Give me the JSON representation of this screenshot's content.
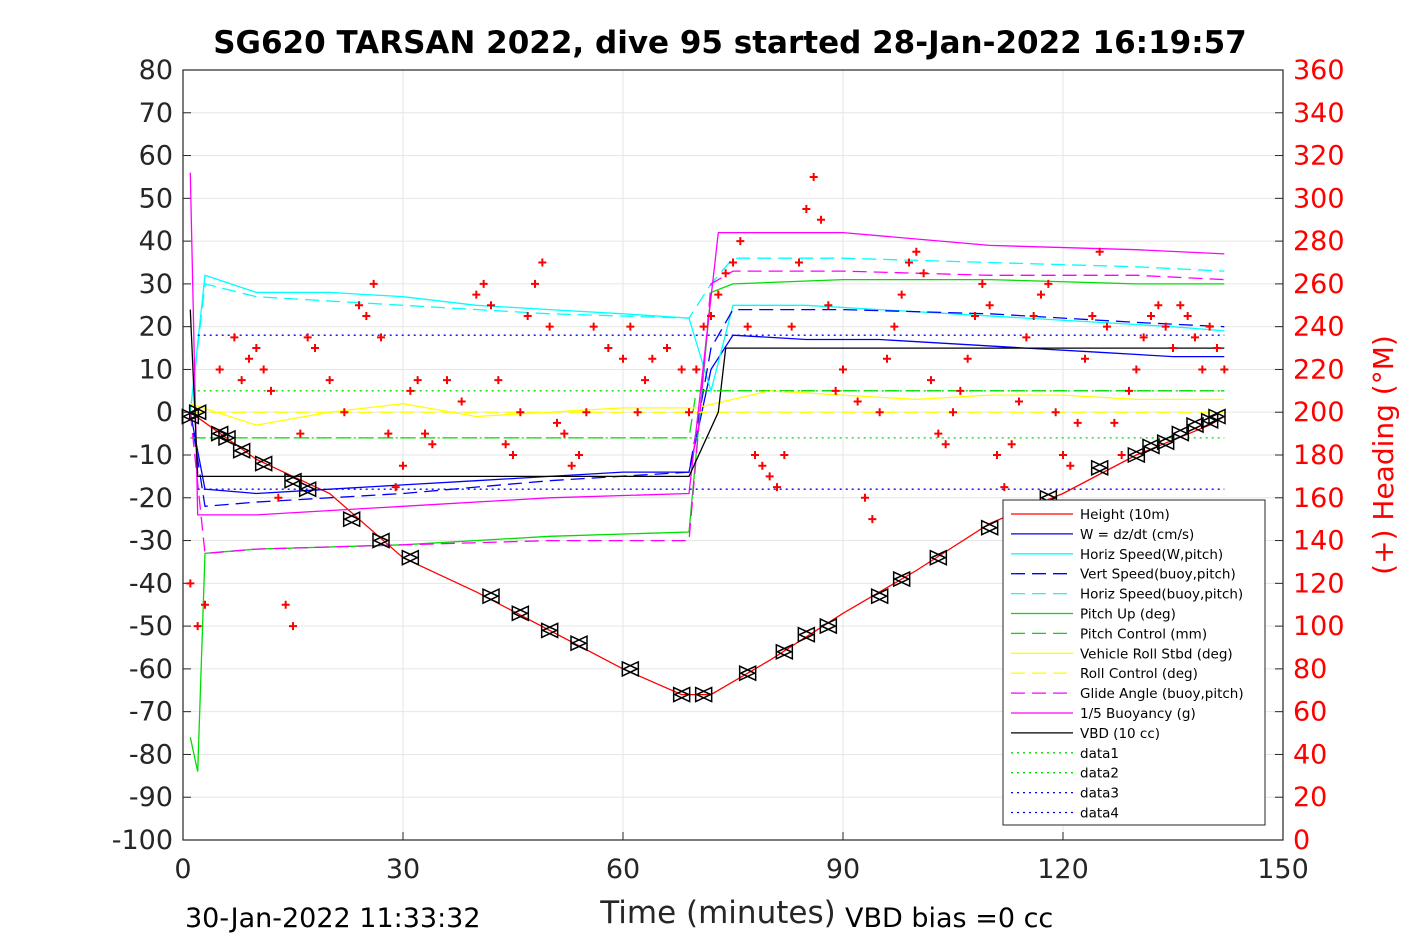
{
  "colors": {
    "red": "#ff0000",
    "blue": "#0000ff",
    "cyan": "#00ffff",
    "green": "#00dd00",
    "yellow": "#ffff00",
    "magenta": "#ff00ff",
    "black": "#000000",
    "grid": "#e6e6e6"
  },
  "chart_data": {
    "type": "line",
    "title": "SG620 TARSAN 2022, dive 95 started 28-Jan-2022 16:19:57",
    "xlabel": "Time (minutes)",
    "ylabel_left": "",
    "ylabel_right": "(+) Heading (°M)",
    "xlim": [
      0,
      150
    ],
    "ylim": [
      -100,
      80
    ],
    "ylim_right": [
      0,
      360
    ],
    "x_ticks": [
      "0",
      "30",
      "60",
      "90",
      "120",
      "150"
    ],
    "y_ticks_left": [
      "80",
      "70",
      "60",
      "50",
      "40",
      "30",
      "20",
      "10",
      "0",
      "-10",
      "-20",
      "-30",
      "-40",
      "-50",
      "-60",
      "-70",
      "-80",
      "-90",
      "-100"
    ],
    "y_ticks_right": [
      "360",
      "340",
      "320",
      "300",
      "280",
      "260",
      "240",
      "220",
      "200",
      "180",
      "160",
      "140",
      "120",
      "100",
      "80",
      "60",
      "40",
      "20",
      "0"
    ],
    "grid": true,
    "legend_position": "lower-right",
    "footer_left": "30-Jan-2022 11:33:32",
    "footer_right": "VBD bias =0 cc",
    "series": [
      {
        "name": "Height (10m)",
        "color": "red",
        "style": "solid",
        "x": [
          1,
          10,
          20,
          30,
          40,
          50,
          60,
          68,
          72,
          80,
          90,
          100,
          110,
          120,
          130,
          140,
          142
        ],
        "y": [
          0,
          -11,
          -19,
          -34,
          -42,
          -51,
          -60,
          -66,
          -66,
          -58,
          -47,
          -37,
          -26,
          -19,
          -10,
          -3,
          -1
        ]
      },
      {
        "name": "W = dz/dt (cm/s)",
        "color": "blue",
        "style": "solid",
        "x": [
          1,
          3,
          10,
          20,
          30,
          40,
          50,
          60,
          69,
          72,
          75,
          85,
          95,
          105,
          115,
          125,
          135,
          142
        ],
        "y": [
          0,
          -18,
          -19,
          -18,
          -17,
          -16,
          -15,
          -14,
          -14,
          10,
          18,
          17,
          17,
          16,
          15,
          14,
          13,
          13
        ]
      },
      {
        "name": "Horiz Speed(W,pitch)",
        "color": "cyan",
        "style": "solid",
        "x": [
          1,
          3,
          10,
          20,
          30,
          40,
          50,
          60,
          69,
          72,
          75,
          85,
          95,
          105,
          115,
          125,
          135,
          142
        ],
        "y": [
          0,
          32,
          28,
          28,
          27,
          25,
          24,
          23,
          22,
          5,
          25,
          25,
          24,
          23,
          22,
          21,
          20,
          19
        ]
      },
      {
        "name": "Vert Speed(buoy,pitch)",
        "color": "blue",
        "style": "dashed",
        "x": [
          1,
          3,
          10,
          30,
          50,
          69,
          72,
          75,
          90,
          110,
          130,
          142
        ],
        "y": [
          0,
          -22,
          -21,
          -19,
          -16,
          -14,
          15,
          24,
          24,
          23,
          21,
          20
        ]
      },
      {
        "name": "Horiz Speed(buoy,pitch)",
        "color": "cyan",
        "style": "dashed",
        "x": [
          1,
          3,
          10,
          30,
          50,
          69,
          72,
          75,
          90,
          110,
          130,
          142
        ],
        "y": [
          0,
          30,
          27,
          25,
          23,
          22,
          30,
          36,
          36,
          35,
          34,
          33
        ]
      },
      {
        "name": "Pitch Up (deg)",
        "color": "green",
        "style": "solid",
        "x": [
          1,
          2,
          3,
          10,
          30,
          50,
          69,
          72,
          75,
          90,
          110,
          130,
          142
        ],
        "y": [
          -76,
          -84,
          -33,
          -32,
          -31,
          -29,
          -28,
          28,
          30,
          31,
          31,
          30,
          30
        ]
      },
      {
        "name": "Pitch Control (mm)",
        "color": "green",
        "style": "dashed",
        "x": [
          1,
          69,
          70,
          142
        ],
        "y": [
          -6,
          -6,
          5,
          5
        ]
      },
      {
        "name": "Vehicle Roll Stbd (deg)",
        "color": "yellow",
        "style": "solid",
        "x": [
          1,
          10,
          20,
          30,
          40,
          50,
          60,
          70,
          80,
          90,
          100,
          110,
          120,
          130,
          142
        ],
        "y": [
          2,
          -3,
          0,
          2,
          -1,
          0,
          1,
          1,
          5,
          4,
          3,
          4,
          4,
          3,
          3
        ]
      },
      {
        "name": "Roll Control (deg)",
        "color": "yellow",
        "style": "dashed",
        "x": [
          1,
          142
        ],
        "y": [
          0,
          0
        ]
      },
      {
        "name": "Glide Angle (buoy,pitch)",
        "color": "magenta",
        "style": "dashed",
        "x": [
          1,
          3,
          10,
          30,
          50,
          69,
          72,
          75,
          90,
          110,
          130,
          142
        ],
        "y": [
          0,
          -33,
          -32,
          -31,
          -30,
          -30,
          30,
          33,
          33,
          32,
          32,
          31
        ]
      },
      {
        "name": "1/5 Buoyancy (g)",
        "color": "magenta",
        "style": "solid",
        "x": [
          1,
          2,
          3,
          10,
          30,
          50,
          69,
          73,
          90,
          110,
          130,
          142
        ],
        "y": [
          56,
          -24,
          -24,
          -24,
          -22,
          -20,
          -19,
          42,
          42,
          39,
          38,
          37
        ]
      },
      {
        "name": "VBD (10 cc)",
        "color": "black",
        "style": "solid",
        "x": [
          1,
          2,
          3,
          69,
          73,
          74,
          142
        ],
        "y": [
          24,
          -15,
          -15,
          -15,
          0,
          15,
          15
        ]
      },
      {
        "name": "data1",
        "color": "green",
        "style": "dotted",
        "x": [
          2,
          142
        ],
        "y": [
          -6,
          -6
        ]
      },
      {
        "name": "data2",
        "color": "green",
        "style": "dotted",
        "x": [
          2,
          142
        ],
        "y": [
          5,
          5
        ]
      },
      {
        "name": "data3",
        "color": "blue",
        "style": "dotted",
        "x": [
          2,
          142
        ],
        "y": [
          18,
          18
        ]
      },
      {
        "name": "data4",
        "color": "blue",
        "style": "dotted",
        "x": [
          2,
          142
        ],
        "y": [
          -18,
          -18
        ]
      }
    ],
    "heading": {
      "color": "red",
      "marker": "+",
      "x": [
        1,
        2,
        3,
        5,
        7,
        8,
        9,
        10,
        11,
        12,
        13,
        14,
        15,
        16,
        17,
        18,
        20,
        22,
        24,
        25,
        26,
        27,
        28,
        29,
        30,
        31,
        32,
        33,
        34,
        36,
        38,
        40,
        41,
        42,
        43,
        44,
        45,
        46,
        47,
        48,
        49,
        50,
        51,
        52,
        53,
        54,
        55,
        56,
        58,
        60,
        61,
        62,
        63,
        64,
        66,
        68,
        69,
        70,
        71,
        72,
        73,
        74,
        75,
        76,
        77,
        78,
        79,
        80,
        81,
        82,
        83,
        84,
        85,
        86,
        87,
        88,
        89,
        90,
        92,
        93,
        94,
        95,
        96,
        97,
        98,
        99,
        100,
        101,
        102,
        103,
        104,
        105,
        106,
        107,
        108,
        109,
        110,
        111,
        112,
        113,
        114,
        115,
        116,
        117,
        118,
        119,
        120,
        121,
        122,
        123,
        124,
        125,
        126,
        127,
        128,
        129,
        130,
        131,
        132,
        133,
        134,
        135,
        136,
        137,
        138,
        139,
        140,
        141,
        142
      ],
      "y": [
        120,
        100,
        110,
        220,
        235,
        215,
        225,
        230,
        220,
        210,
        160,
        110,
        100,
        190,
        235,
        230,
        215,
        200,
        250,
        245,
        260,
        235,
        190,
        165,
        175,
        210,
        215,
        190,
        185,
        215,
        205,
        255,
        260,
        250,
        215,
        185,
        180,
        200,
        245,
        260,
        270,
        240,
        195,
        190,
        175,
        180,
        200,
        240,
        230,
        225,
        240,
        200,
        215,
        225,
        230,
        220,
        200,
        220,
        240,
        245,
        255,
        265,
        270,
        280,
        240,
        180,
        175,
        170,
        165,
        180,
        240,
        270,
        295,
        310,
        290,
        250,
        210,
        220,
        205,
        160,
        150,
        200,
        225,
        240,
        255,
        270,
        275,
        265,
        215,
        190,
        185,
        200,
        210,
        225,
        245,
        260,
        250,
        180,
        165,
        185,
        205,
        235,
        245,
        255,
        260,
        200,
        180,
        175,
        195,
        225,
        245,
        275,
        240,
        195,
        180,
        210,
        220,
        235,
        245,
        250,
        240,
        230,
        250,
        245,
        235,
        220,
        240,
        230,
        220
      ]
    },
    "markers": {
      "color": "black",
      "marker": "triangle",
      "x": [
        1,
        2,
        5,
        6,
        8,
        11,
        15,
        17,
        23,
        27,
        31,
        42,
        46,
        50,
        54,
        61,
        68,
        71,
        77,
        82,
        85,
        88,
        95,
        98,
        103,
        110,
        118,
        125,
        130,
        132,
        134,
        136,
        138,
        140,
        141
      ],
      "y": [
        -1,
        0,
        -5,
        -6,
        -9,
        -12,
        -16,
        -18,
        -25,
        -30,
        -34,
        -43,
        -47,
        -51,
        -54,
        -60,
        -66,
        -66,
        -61,
        -56,
        -52,
        -50,
        -43,
        -39,
        -34,
        -27,
        -20,
        -13,
        -10,
        -8,
        -7,
        -5,
        -3,
        -2,
        -1
      ]
    }
  }
}
